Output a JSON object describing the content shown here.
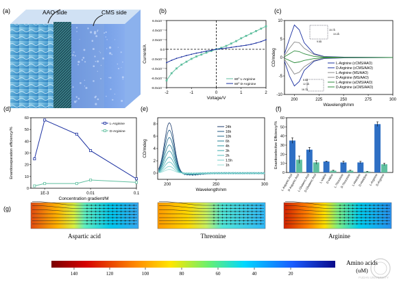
{
  "panel_labels": {
    "a": "(a)",
    "b": "(b)",
    "c": "(c)",
    "d": "(d)",
    "e": "(e)",
    "f": "(f)",
    "g": "(g)"
  },
  "panel_a": {
    "left_side_label": "AAO side",
    "right_side_label": "CMS side"
  },
  "panel_g": {
    "items": [
      "Aspartic acid",
      "Threonine",
      "Arginine"
    ],
    "colorbar_ticks": [
      "140",
      "120",
      "100",
      "80",
      "60",
      "40",
      "20"
    ],
    "colorbar_title": "Amino acids",
    "colorbar_unit": "(uM)",
    "watermark": "FUDAN UNIVERSITY"
  },
  "chart_data": [
    {
      "panel": "b",
      "type": "line",
      "xlabel": "Voltage/V",
      "ylabel": "Current/A",
      "xlim": [
        -2,
        2
      ],
      "ylim": [
        -8e-07,
        6e-07
      ],
      "xticks": [
        "-2",
        "-1",
        "0",
        "1",
        "2"
      ],
      "yticks": [
        "6.0x10⁻⁷",
        "4.0x10⁻⁷",
        "2.0x10⁻⁷",
        "0.0",
        "-2.0x10⁻⁷",
        "-4.0x10⁻⁷",
        "-6.0x10⁻⁷",
        "-8.0x10⁻⁷"
      ],
      "legend_position": "bottom-right",
      "series": [
        {
          "name": "80⁰ L-Arginine",
          "color": "#5fbf9f",
          "x": [
            -2,
            -1.8,
            -1.6,
            -1.4,
            -1.2,
            -1,
            -0.8,
            -0.6,
            -0.4,
            -0.2,
            0,
            0.2,
            0.4,
            0.6,
            0.8,
            1,
            1.2,
            1.4,
            1.6,
            1.8,
            2
          ],
          "y": [
            -6.5e-07,
            -5e-07,
            -4e-07,
            -3.2e-07,
            -2.6e-07,
            -2e-07,
            -1.5e-07,
            -1.1e-07,
            -7e-08,
            -3.5e-08,
            0,
            3e-08,
            7e-08,
            1.2e-07,
            1.7e-07,
            2.3e-07,
            2.8e-07,
            3.3e-07,
            3.8e-07,
            4.3e-07,
            4.8e-07
          ]
        },
        {
          "name": "80⁰ D-Arginine",
          "color": "#1a2fa0",
          "x": [
            -2,
            -1.8,
            -1.6,
            -1.4,
            -1.2,
            -1,
            -0.8,
            -0.6,
            -0.4,
            -0.2,
            0,
            0.2,
            0.4,
            0.6,
            0.8,
            1,
            1.2,
            1.4,
            1.6,
            1.8,
            2
          ],
          "y": [
            -2.8e-07,
            -2.3e-07,
            -1.9e-07,
            -1.6e-07,
            -1.3e-07,
            -1.05e-07,
            -8e-08,
            -6e-08,
            -4e-08,
            -2e-08,
            0,
            1.2e-08,
            2.5e-08,
            4e-08,
            5.5e-08,
            7e-08,
            8.5e-08,
            1.05e-07,
            1.3e-07,
            1.6e-07,
            2e-07
          ]
        }
      ]
    },
    {
      "panel": "c",
      "type": "line",
      "xlabel": "Wavelength/nm",
      "ylabel": "CD/mdeg",
      "xlim": [
        190,
        300
      ],
      "ylim": [
        -10,
        10
      ],
      "xticks": [
        "200",
        "225",
        "250",
        "275",
        "300"
      ],
      "yticks": [
        "10",
        "5",
        "0",
        "-5",
        "-10"
      ],
      "legend_position": "bottom-right",
      "inset_labels": [
        "15.7Å",
        "10.2Å",
        "9.5Å",
        "8.8Å",
        "12.3Å",
        "16.7Å"
      ],
      "series": [
        {
          "name": "L-Arginine (cCMS/AAO)",
          "color": "#1a2fa0",
          "x": [
            190,
            195,
            200,
            205,
            210,
            220,
            230,
            250,
            300
          ],
          "y": [
            1,
            5,
            8.8,
            7.5,
            4,
            1,
            0.3,
            0.1,
            0
          ]
        },
        {
          "name": "D-Arginine (cCMS/AAO)",
          "color": "#1a2fa0",
          "x": [
            190,
            195,
            200,
            205,
            210,
            220,
            230,
            250,
            300
          ],
          "y": [
            -1,
            -5,
            -7.7,
            -6.5,
            -3.5,
            -1,
            -0.3,
            -0.1,
            0
          ]
        },
        {
          "name": "L-Arginine (MS/AAO)",
          "color": "#888888",
          "x": [
            190,
            195,
            200,
            205,
            210,
            220,
            230,
            250,
            300
          ],
          "y": [
            0.5,
            2.5,
            4.2,
            4,
            2.5,
            0.8,
            0.2,
            0.05,
            0
          ]
        },
        {
          "name": "D-Arginine (MS/AAO)",
          "color": "#888888",
          "x": [
            190,
            195,
            200,
            205,
            210,
            220,
            230,
            250,
            300
          ],
          "y": [
            -0.5,
            -2.5,
            -4.5,
            -4,
            -2.5,
            -0.8,
            -0.2,
            -0.05,
            0
          ]
        },
        {
          "name": "L-Arginine (aCMS/AAO)",
          "color": "#2a8a3a",
          "x": [
            190,
            195,
            200,
            205,
            210,
            220,
            230,
            250,
            300
          ],
          "y": [
            0.2,
            1,
            1.8,
            1.6,
            1,
            0.3,
            0.1,
            0,
            0
          ]
        },
        {
          "name": "D-Arginine (aCMS/AAO)",
          "color": "#2a8a3a",
          "x": [
            190,
            195,
            200,
            205,
            210,
            220,
            230,
            250,
            300
          ],
          "y": [
            -0.2,
            -0.8,
            -1.4,
            -1.2,
            -0.8,
            -0.3,
            -0.1,
            0,
            0
          ]
        }
      ]
    },
    {
      "panel": "d",
      "type": "line",
      "xlabel": "Concentration gradient/M",
      "ylabel": "Enantioseparation efficiency/%",
      "xscale": "log",
      "xlim": [
        0.0005,
        0.1
      ],
      "ylim": [
        0,
        60
      ],
      "xticks": [
        "1E-3",
        "0.01",
        "0.1"
      ],
      "yticks": [
        "0",
        "10",
        "20",
        "30",
        "40",
        "50",
        "60"
      ],
      "legend_position": "top-right",
      "series": [
        {
          "name": "L-Arginine",
          "color": "#1a2fa0",
          "x": [
            0.0006,
            0.001,
            0.005,
            0.01,
            0.1
          ],
          "y": [
            25,
            58,
            46,
            32,
            8
          ]
        },
        {
          "name": "D-Arginine",
          "color": "#5fbf9f",
          "x": [
            0.0006,
            0.001,
            0.005,
            0.01,
            0.1
          ],
          "y": [
            2,
            4,
            4,
            7,
            5
          ]
        }
      ]
    },
    {
      "panel": "e",
      "type": "line",
      "xlabel": "Wavelength/nm",
      "ylabel": "CD/mdeg",
      "xlim": [
        190,
        300
      ],
      "ylim": [
        -1,
        9
      ],
      "xticks": [
        "200",
        "250",
        "300"
      ],
      "yticks": [
        "0",
        "2",
        "4",
        "6",
        "8"
      ],
      "legend_position": "top-right",
      "series": [
        {
          "name": "24h",
          "color": "#1b3a6b",
          "peak": 8.2
        },
        {
          "name": "16h",
          "color": "#1d5580",
          "peak": 7.0
        },
        {
          "name": "10h",
          "color": "#206a8a",
          "peak": 5.8
        },
        {
          "name": "6h",
          "color": "#217f93",
          "peak": 4.6
        },
        {
          "name": "4h",
          "color": "#2a94a0",
          "peak": 3.6
        },
        {
          "name": "3h",
          "color": "#3ba8ad",
          "peak": 2.6
        },
        {
          "name": "2h",
          "color": "#55bcbc",
          "peak": 1.8
        },
        {
          "name": "1.5h",
          "color": "#76ceca",
          "peak": 1.1
        },
        {
          "name": "1h",
          "color": "#9adcd7",
          "peak": 0.6
        }
      ]
    },
    {
      "panel": "f",
      "type": "bar",
      "ylabel": "Enantioselective Efficiency/%",
      "ylim": [
        0,
        60
      ],
      "yticks": [
        "0",
        "10",
        "20",
        "30",
        "40",
        "50",
        "60"
      ],
      "categories": [
        "L-Aspartic Acid",
        "D-Aspartic Acid",
        "L-Glutamic Acid",
        "D-Glutamic Acid",
        "L-Valine",
        "D-Valine",
        "L-Threonine",
        "D-Threonine",
        "L-Histidine",
        "D-Histidine",
        "L-Arginine",
        "D-Arginine"
      ],
      "values": [
        35,
        14,
        25,
        11,
        12,
        2,
        11,
        2,
        11,
        1,
        53,
        9
      ],
      "errors": [
        3,
        4,
        2.5,
        2,
        0.5,
        0.5,
        1.5,
        0.5,
        1.2,
        0.3,
        2.5,
        1.2
      ],
      "colors": [
        "#2e6fc4",
        "#5fbf9f",
        "#2e6fc4",
        "#5fbf9f",
        "#2e6fc4",
        "#5fbf9f",
        "#2e6fc4",
        "#5fbf9f",
        "#2e6fc4",
        "#5fbf9f",
        "#2e6fc4",
        "#5fbf9f"
      ]
    }
  ]
}
